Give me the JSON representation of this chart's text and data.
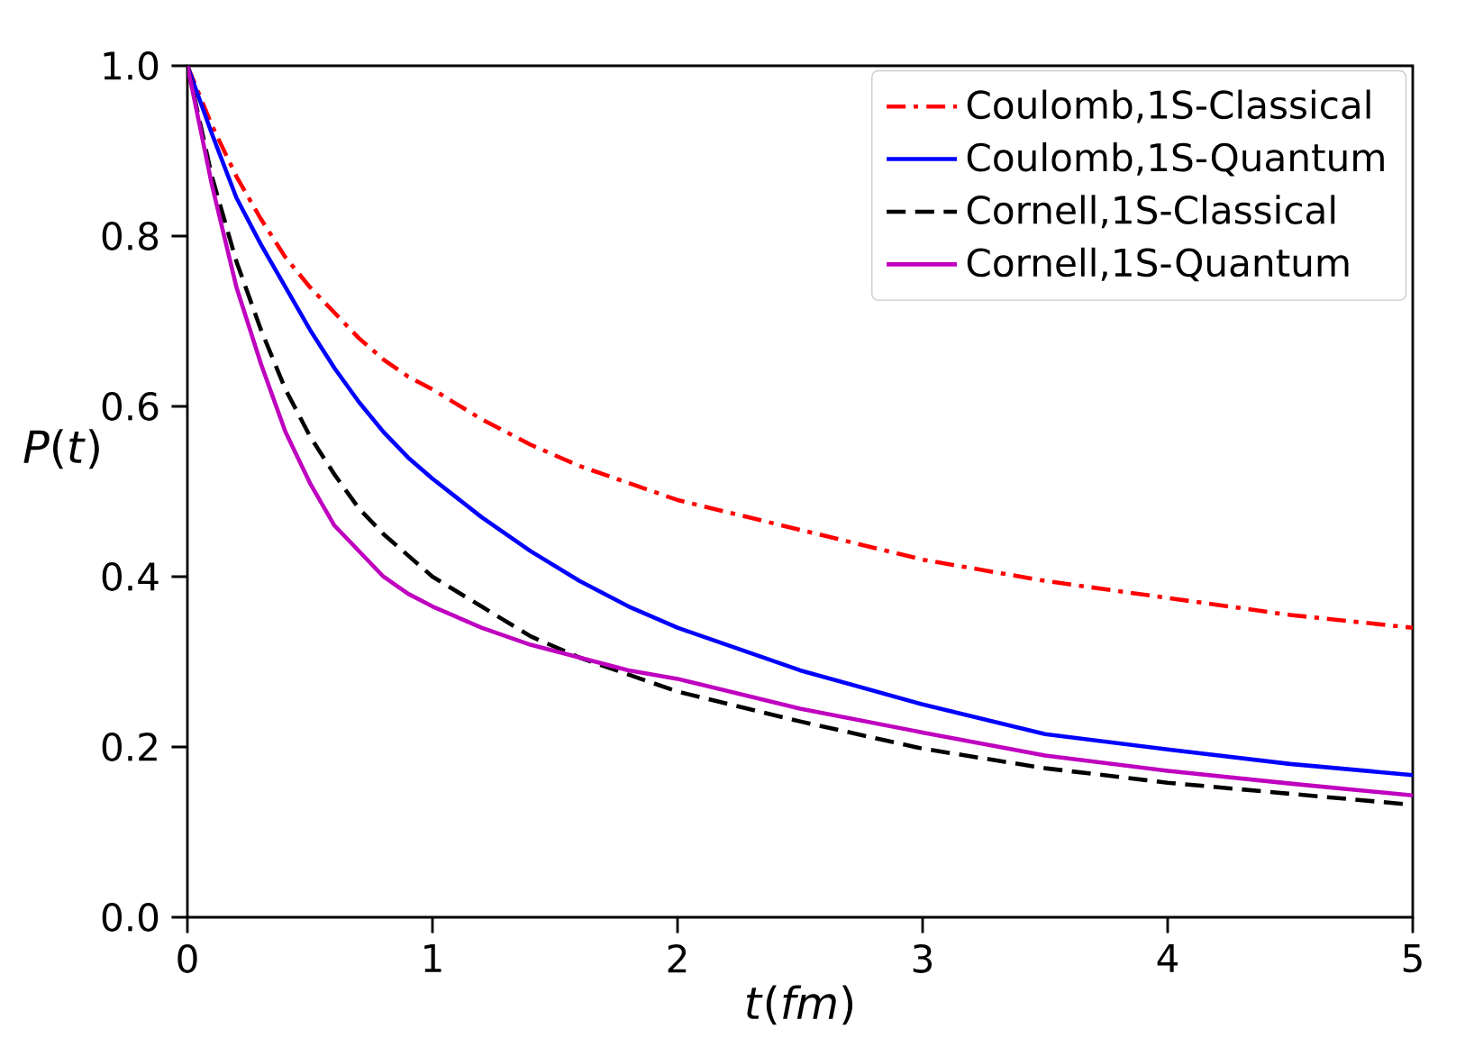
{
  "chart_data": {
    "type": "line",
    "xlabel": "*t*(*fm*)",
    "ylabel": "*P*(*t*)",
    "xlim": [
      0,
      5
    ],
    "ylim": [
      0,
      1
    ],
    "xticks": [
      0,
      1,
      2,
      3,
      4,
      5
    ],
    "yticks": [
      {
        "value": 0,
        "label": "0.0"
      },
      {
        "value": 0.2,
        "label": "0.2"
      },
      {
        "value": 0.4,
        "label": "0.4"
      },
      {
        "value": 0.6,
        "label": "0.6"
      },
      {
        "value": 0.8,
        "label": "0.8"
      },
      {
        "value": 1,
        "label": "1.0"
      }
    ],
    "grid": false,
    "legend": "top right",
    "marker": "none",
    "x": [
      0,
      0.1,
      0.2,
      0.3,
      0.4,
      0.5,
      0.6,
      0.7,
      0.8,
      0.9,
      1,
      1.2,
      1.4,
      1.6,
      1.8,
      2,
      2.5,
      3,
      3.5,
      4,
      4.5,
      5
    ],
    "series": [
      {
        "name": "Coulomb,1S-Classical",
        "color": "#ff0000",
        "line_style": "dashdot",
        "values": [
          1,
          0.93,
          0.87,
          0.82,
          0.775,
          0.74,
          0.71,
          0.68,
          0.655,
          0.635,
          0.62,
          0.585,
          0.555,
          0.53,
          0.51,
          0.49,
          0.455,
          0.42,
          0.395,
          0.375,
          0.355,
          0.34
        ]
      },
      {
        "name": "Coulomb,1S-Quantum",
        "color": "#0000ff",
        "line_style": "solid",
        "values": [
          1,
          0.92,
          0.845,
          0.79,
          0.74,
          0.69,
          0.645,
          0.605,
          0.57,
          0.54,
          0.515,
          0.47,
          0.43,
          0.395,
          0.365,
          0.34,
          0.29,
          0.25,
          0.215,
          0.197,
          0.18,
          0.167
        ]
      },
      {
        "name": "Cornell,1S-Classical",
        "color": "#000000",
        "line_style": "dashed",
        "values": [
          1,
          0.87,
          0.77,
          0.69,
          0.62,
          0.565,
          0.52,
          0.48,
          0.45,
          0.425,
          0.4,
          0.365,
          0.33,
          0.305,
          0.285,
          0.265,
          0.23,
          0.198,
          0.175,
          0.158,
          0.145,
          0.132
        ]
      },
      {
        "name": "Cornell,1S-Quantum",
        "color": "#bf00bf",
        "line_style": "solid",
        "values": [
          1,
          0.86,
          0.74,
          0.65,
          0.57,
          0.51,
          0.46,
          0.43,
          0.4,
          0.38,
          0.365,
          0.34,
          0.32,
          0.305,
          0.29,
          0.28,
          0.245,
          0.217,
          0.19,
          0.172,
          0.157,
          0.143
        ]
      }
    ]
  }
}
